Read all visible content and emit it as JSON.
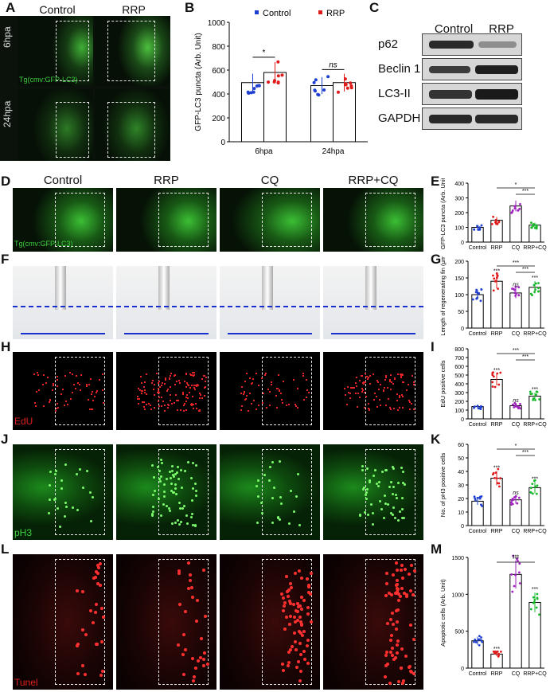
{
  "panel_letters": {
    "A": "A",
    "B": "B",
    "C": "C",
    "D": "D",
    "E": "E",
    "F": "F",
    "G": "G",
    "H": "H",
    "I": "I",
    "J": "J",
    "K": "K",
    "L": "L",
    "M": "M"
  },
  "panelA": {
    "col1": "Control",
    "col2": "RRP",
    "row1": "6hpa",
    "row2": "24hpa",
    "tag": "Tg(cmv:GFP-LC3)"
  },
  "panelC": {
    "col1": "Control",
    "col2": "RRP",
    "bands": [
      "p62",
      "Beclin 1",
      "LC3-II",
      "GAPDH"
    ]
  },
  "columns": [
    "Control",
    "RRP",
    "CQ",
    "RRP+CQ"
  ],
  "row_tags": {
    "D": "Tg(cmv:GFP-LC3)",
    "H": "EdU",
    "J": "pH3",
    "L": "Tunel"
  },
  "colors": {
    "control": "#1f3fd0",
    "rrp": "#e01b1b",
    "cq": "#a020c0",
    "rrpcq": "#19b82a",
    "gfp": "#3fd040",
    "red": "#e02020"
  },
  "chart_data": [
    {
      "id": "B",
      "type": "bar",
      "categories": [
        "6hpa",
        "24hpa"
      ],
      "series": [
        {
          "name": "Control",
          "values": [
            495,
            470
          ]
        },
        {
          "name": "RRP",
          "values": [
            580,
            495
          ]
        }
      ],
      "ylabel": "GFP-LC3 puncta (Arb. Unit)",
      "ylim": [
        0,
        1000
      ],
      "yticks": [
        "0",
        "200",
        "400",
        "600",
        "800",
        "1000"
      ],
      "significance": [
        "*",
        "ns"
      ],
      "legend": "top"
    },
    {
      "id": "E",
      "type": "bar",
      "categories": [
        "Control",
        "RRP",
        "CQ",
        "RRP+CQ"
      ],
      "values": [
        100,
        148,
        245,
        115
      ],
      "ylabel": "GFP-LC3 puncta (Arb. Unit)",
      "ylim": [
        0,
        400
      ],
      "yticks": [
        "0",
        "100",
        "200",
        "300",
        "400"
      ],
      "significance": [
        "*",
        "***"
      ]
    },
    {
      "id": "G",
      "type": "bar",
      "categories": [
        "Control",
        "RRP",
        "CQ",
        "RRP+CQ"
      ],
      "values": [
        100,
        140,
        105,
        122
      ],
      "ylabel": "Length of regenerating fin (μm)",
      "ylim": [
        0,
        200
      ],
      "yticks": [
        "0",
        "50",
        "100",
        "150",
        "200"
      ],
      "significance": [
        "***",
        "***"
      ],
      "above": [
        "",
        "***",
        "ns",
        "***"
      ]
    },
    {
      "id": "I",
      "type": "bar",
      "categories": [
        "Control",
        "RRP",
        "CQ",
        "RRP+CQ"
      ],
      "values": [
        140,
        450,
        150,
        260
      ],
      "ylabel": "EdU positive cells",
      "ylim": [
        0,
        800
      ],
      "yticks": [
        "0",
        "100",
        "200",
        "300",
        "400",
        "500",
        "600",
        "700",
        "800"
      ],
      "significance": [
        "***",
        "***"
      ],
      "above": [
        "",
        "***",
        "ns",
        "***"
      ]
    },
    {
      "id": "K",
      "type": "bar",
      "categories": [
        "Control",
        "RRP",
        "CQ",
        "RRP+CQ"
      ],
      "values": [
        18,
        35,
        19,
        28
      ],
      "ylabel": "No. of pH3 positive cells",
      "ylim": [
        0,
        60
      ],
      "yticks": [
        "0",
        "10",
        "20",
        "30",
        "40",
        "50",
        "60"
      ],
      "significance": [
        "*",
        "***"
      ],
      "above": [
        "",
        "***",
        "ns",
        "***"
      ]
    },
    {
      "id": "M",
      "type": "bar",
      "categories": [
        "Control",
        "RRP",
        "CQ",
        "RRP+CQ"
      ],
      "values": [
        370,
        190,
        1270,
        890
      ],
      "ylabel": "Apoptotic cells (Arb. Unit)",
      "ylim": [
        0,
        1500
      ],
      "yticks": [
        "0",
        "500",
        "1000",
        "1500"
      ],
      "significance": [
        "***"
      ],
      "above": [
        "",
        "***",
        "***",
        "***"
      ]
    }
  ]
}
